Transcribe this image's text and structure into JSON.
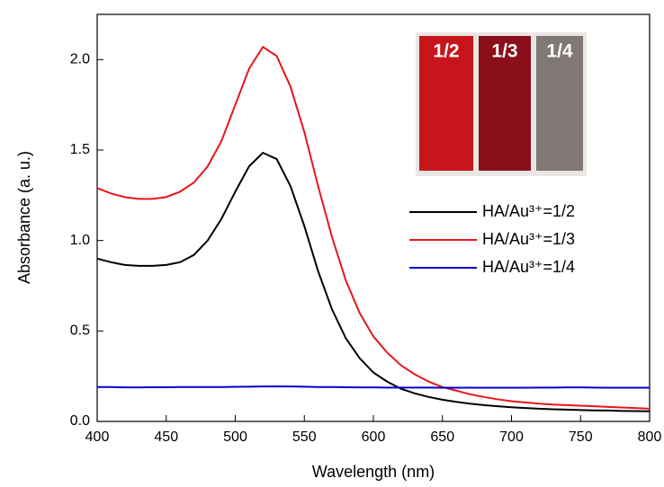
{
  "chart_data": {
    "type": "line",
    "xlabel": "Wavelength (nm)",
    "ylabel": "Absorbance (a. u.)",
    "x": [
      400,
      410,
      420,
      430,
      440,
      450,
      460,
      470,
      480,
      490,
      500,
      510,
      520,
      530,
      540,
      550,
      560,
      570,
      580,
      590,
      600,
      610,
      620,
      630,
      640,
      650,
      660,
      670,
      680,
      690,
      700,
      710,
      720,
      730,
      740,
      750,
      760,
      770,
      780,
      790,
      800
    ],
    "series": [
      {
        "name": "HA/Au³⁺=1/2",
        "color": "#000000",
        "values": [
          0.9,
          0.88,
          0.865,
          0.86,
          0.86,
          0.865,
          0.88,
          0.92,
          1.0,
          1.12,
          1.27,
          1.41,
          1.485,
          1.45,
          1.3,
          1.08,
          0.83,
          0.62,
          0.46,
          0.35,
          0.27,
          0.22,
          0.18,
          0.155,
          0.135,
          0.12,
          0.108,
          0.098,
          0.09,
          0.084,
          0.078,
          0.074,
          0.07,
          0.067,
          0.065,
          0.063,
          0.061,
          0.06,
          0.058,
          0.057,
          0.056
        ]
      },
      {
        "name": "HA/Au³⁺=1/3",
        "color": "#e8141c",
        "values": [
          1.29,
          1.26,
          1.24,
          1.23,
          1.23,
          1.24,
          1.27,
          1.32,
          1.41,
          1.55,
          1.75,
          1.95,
          2.07,
          2.02,
          1.85,
          1.6,
          1.3,
          1.02,
          0.78,
          0.6,
          0.47,
          0.38,
          0.31,
          0.26,
          0.22,
          0.19,
          0.17,
          0.15,
          0.135,
          0.122,
          0.112,
          0.105,
          0.098,
          0.093,
          0.09,
          0.087,
          0.084,
          0.08,
          0.077,
          0.074,
          0.07
        ]
      },
      {
        "name": "HA/Au³⁺=1/4",
        "color": "#0000cc",
        "values": [
          0.19,
          0.19,
          0.188,
          0.188,
          0.189,
          0.189,
          0.19,
          0.19,
          0.19,
          0.19,
          0.191,
          0.192,
          0.193,
          0.194,
          0.193,
          0.192,
          0.19,
          0.19,
          0.189,
          0.188,
          0.188,
          0.187,
          0.187,
          0.187,
          0.187,
          0.186,
          0.186,
          0.186,
          0.186,
          0.186,
          0.186,
          0.186,
          0.187,
          0.187,
          0.188,
          0.188,
          0.187,
          0.186,
          0.186,
          0.186,
          0.186
        ]
      }
    ],
    "xlim": [
      400,
      800
    ],
    "xticks": [
      400,
      450,
      500,
      550,
      600,
      650,
      700,
      750,
      800
    ],
    "ylim": [
      0,
      2.25
    ],
    "yticks": [
      {
        "value": 0,
        "label": "0.0"
      },
      0.5,
      {
        "value": 1,
        "label": "1.0"
      },
      1.5,
      {
        "value": 2,
        "label": "2.0"
      }
    ],
    "grid": false,
    "annotations": [
      "1/2",
      "1/3",
      "1/4"
    ]
  }
}
